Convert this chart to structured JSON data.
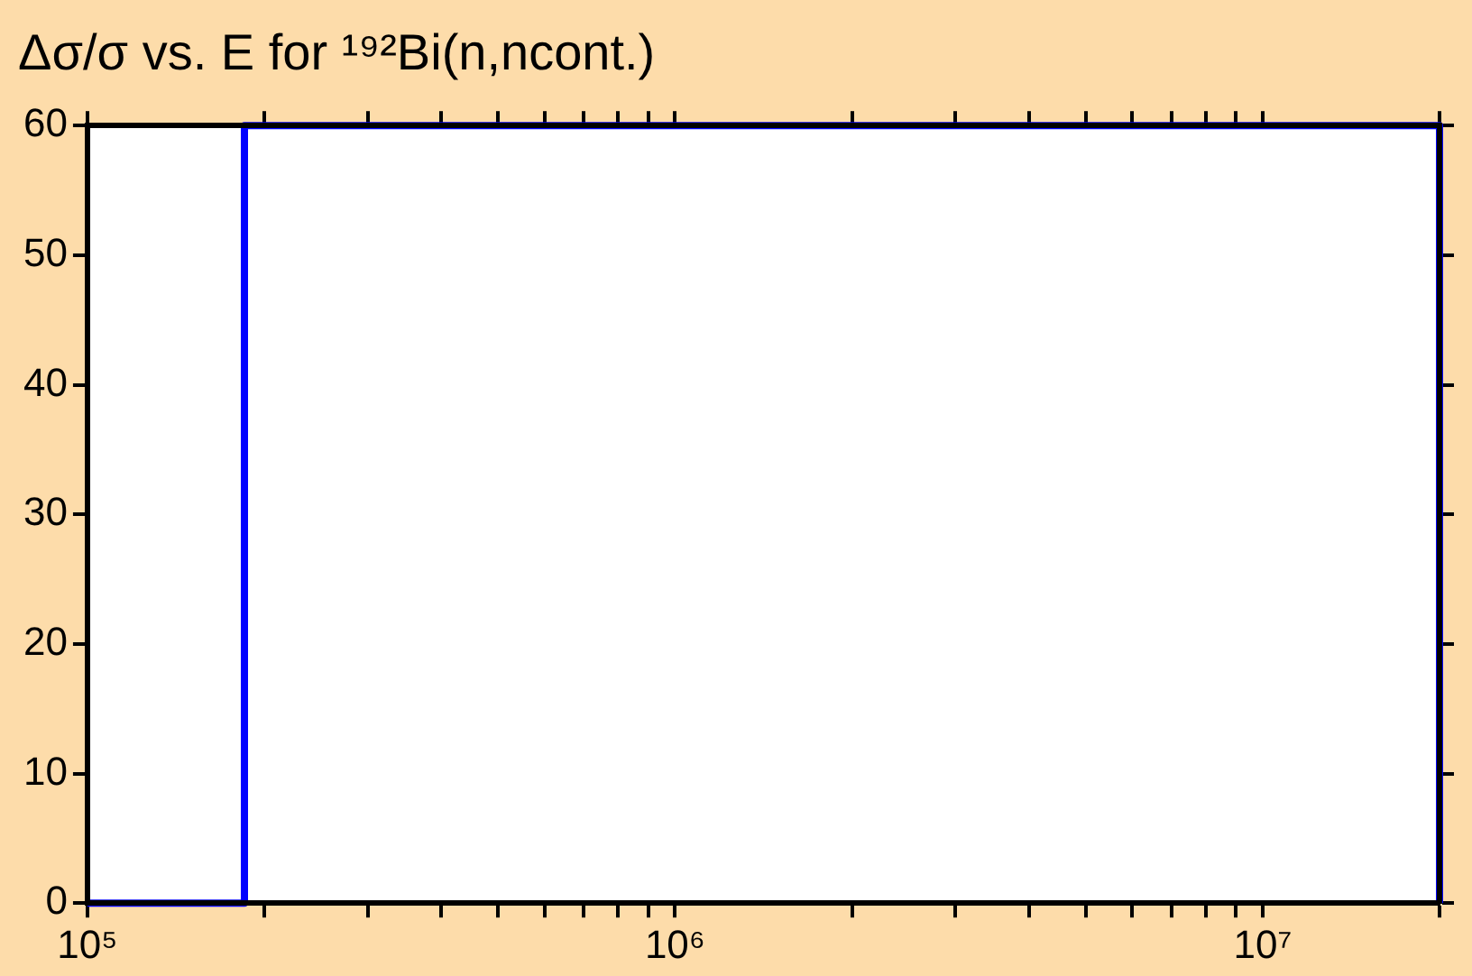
{
  "chart_data": {
    "type": "step",
    "title": "Δσ/σ vs. E for ¹⁹²Bi(n,ncont.)",
    "series": [
      {
        "color": "#0000ff",
        "x": [
          100000,
          185000,
          20000000
        ],
        "values": [
          0,
          60,
          0
        ]
      }
    ],
    "log": "x",
    "xlim": [
      100000,
      20000000
    ],
    "xticks": [
      {
        "value": 100000,
        "label": "10⁵"
      },
      {
        "value": 200000,
        "label": null
      },
      {
        "value": 300000,
        "label": null
      },
      {
        "value": 400000,
        "label": null
      },
      {
        "value": 500000,
        "label": null
      },
      {
        "value": 600000,
        "label": null
      },
      {
        "value": 700000,
        "label": null
      },
      {
        "value": 800000,
        "label": null
      },
      {
        "value": 900000,
        "label": null
      },
      {
        "value": 1000000,
        "label": "10⁶"
      },
      {
        "value": 2000000,
        "label": null
      },
      {
        "value": 3000000,
        "label": null
      },
      {
        "value": 4000000,
        "label": null
      },
      {
        "value": 5000000,
        "label": null
      },
      {
        "value": 6000000,
        "label": null
      },
      {
        "value": 7000000,
        "label": null
      },
      {
        "value": 8000000,
        "label": null
      },
      {
        "value": 9000000,
        "label": null
      },
      {
        "value": 10000000,
        "label": "10⁷"
      },
      {
        "value": 20000000,
        "label": null
      }
    ],
    "ylim": [
      0,
      60
    ],
    "yticks": [
      0,
      10,
      20,
      30,
      40,
      50,
      60
    ],
    "grid": false,
    "legend": false,
    "marker": "none",
    "line_style": "solid"
  }
}
